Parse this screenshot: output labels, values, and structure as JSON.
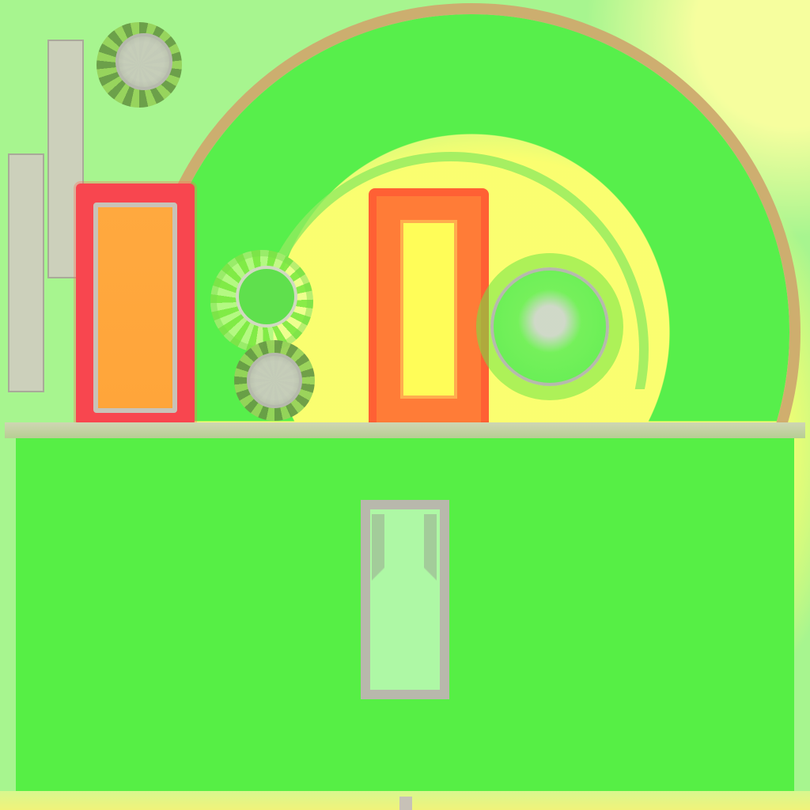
{
  "scene": {
    "title": "",
    "colors": {
      "field": "#56ef45",
      "yellow_glow": "#fffd58",
      "red_frame": "#f8464f",
      "orange_fill": "#ffa93f",
      "orange_frame": "#ff6034",
      "gray_trim": "#b8b8ac",
      "light_screen": "#aef8a5",
      "arc_trim": "#cdae6e"
    },
    "icons": [
      "top-left-node-icon",
      "left-upper-node-icon",
      "left-lower-node-icon",
      "center-right-node-icon"
    ]
  }
}
